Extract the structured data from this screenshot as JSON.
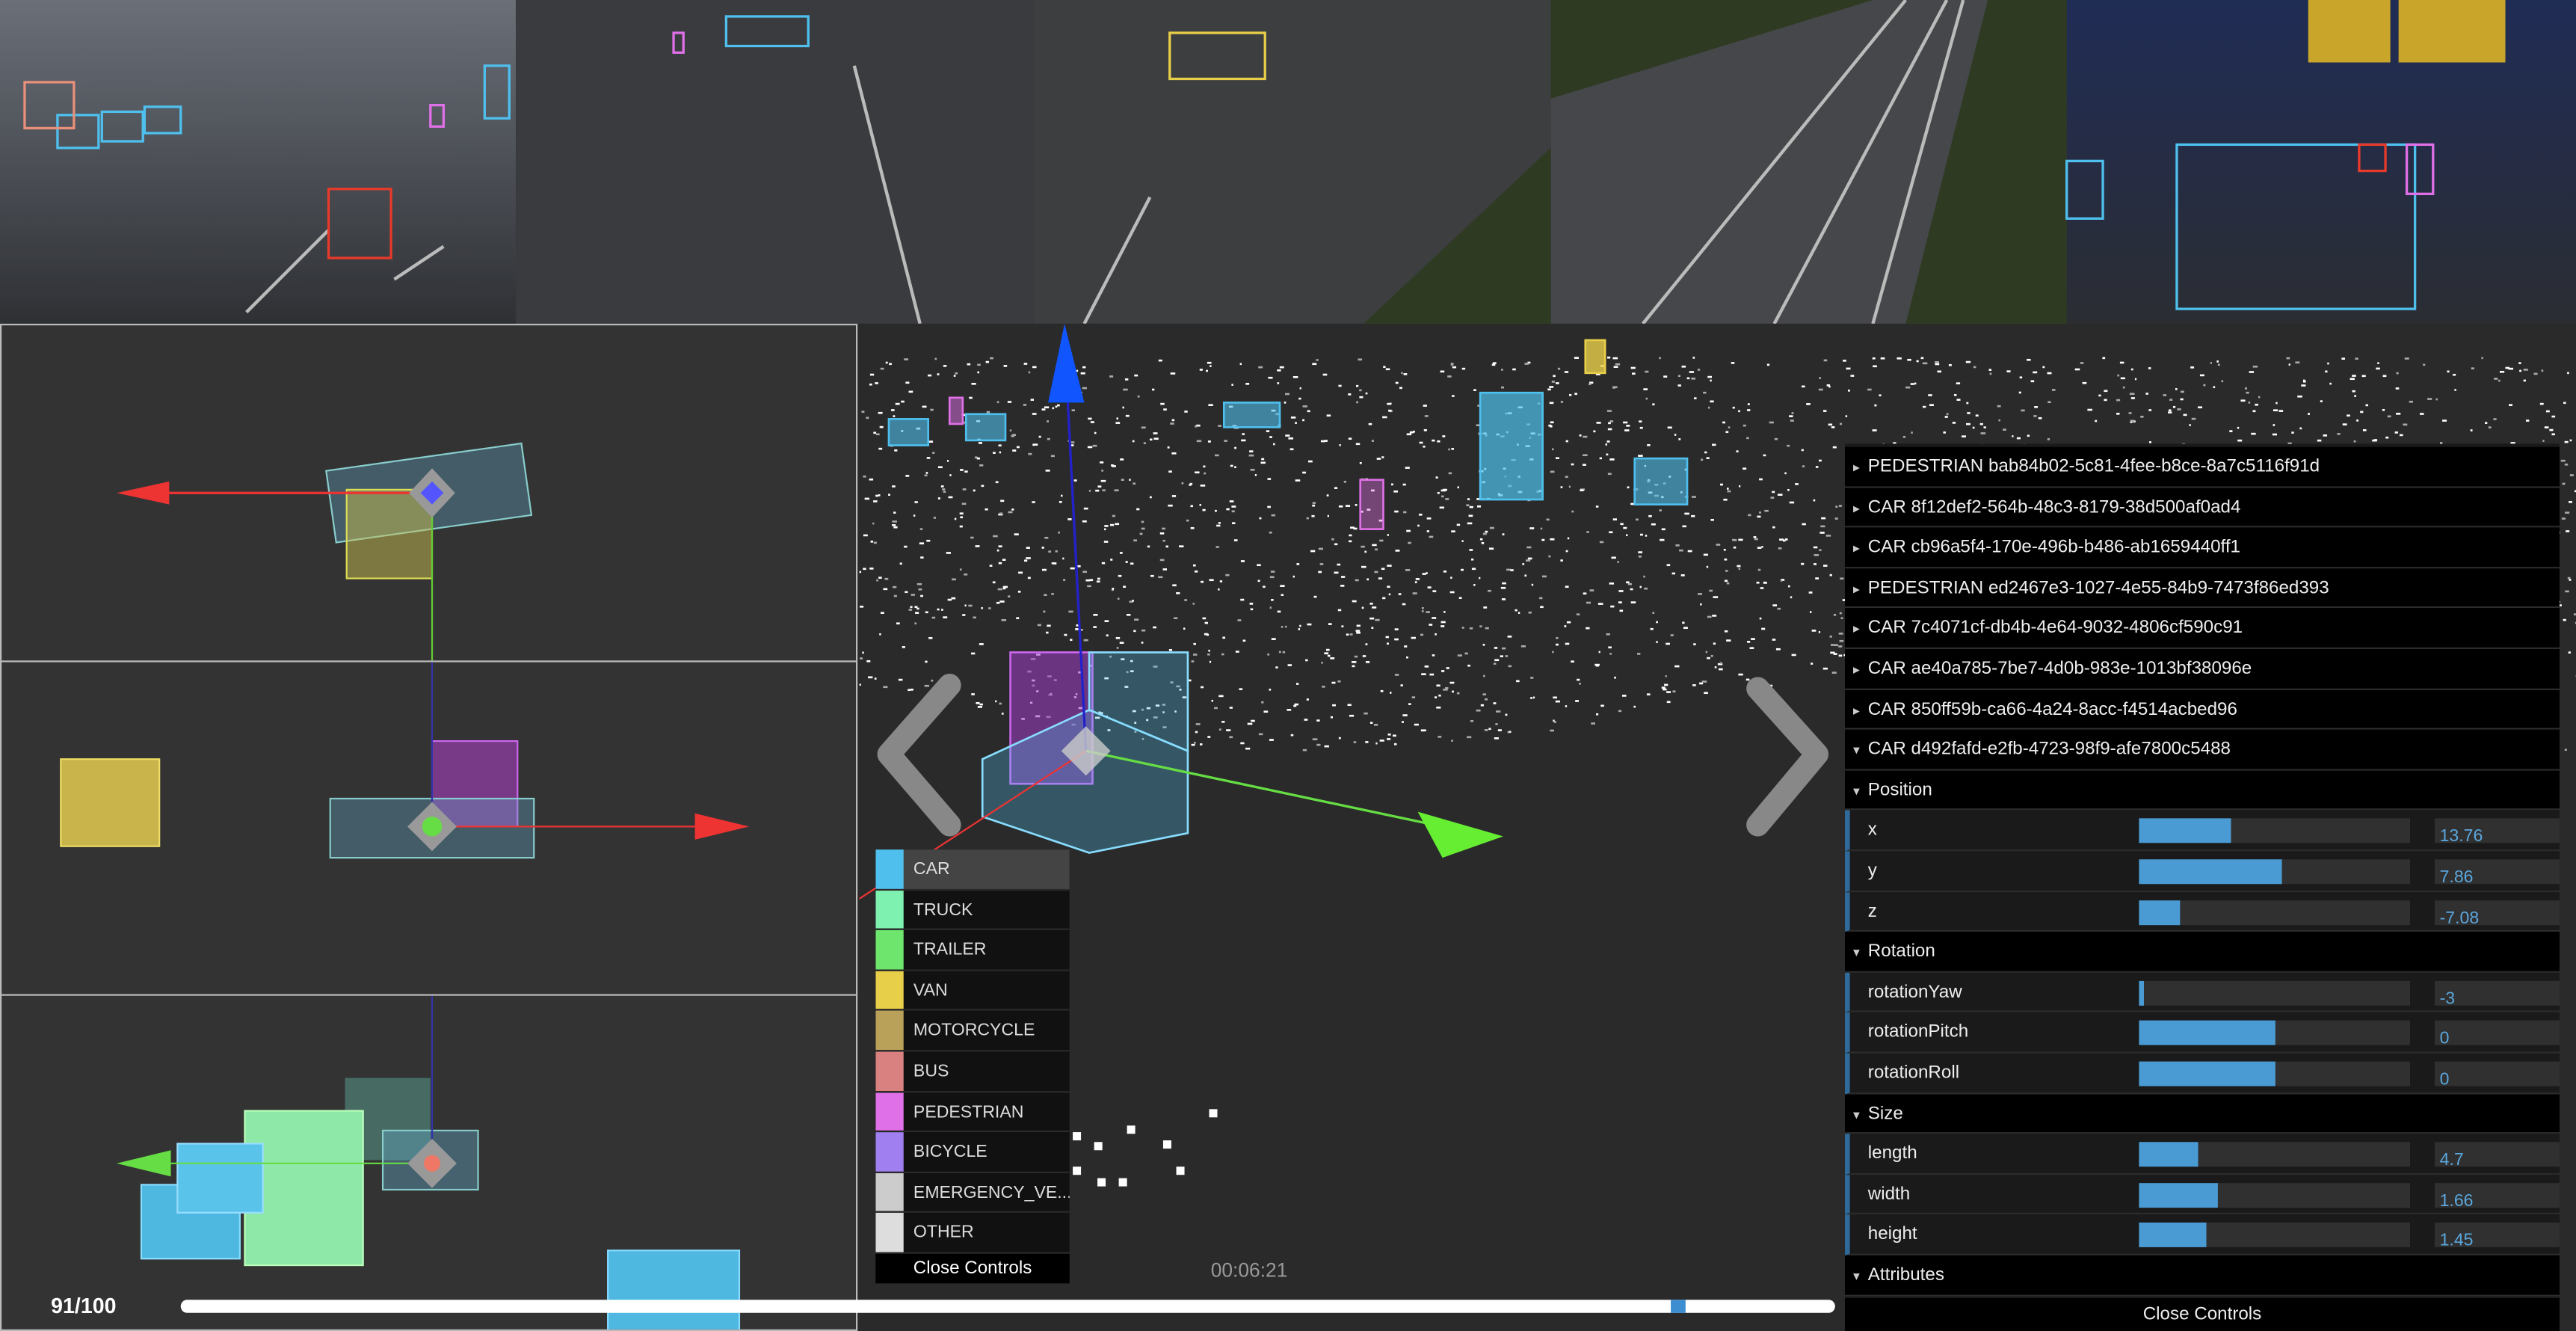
{
  "frame_counter": "91/100",
  "timestamp": "00:06:21",
  "class_menu": {
    "items": [
      {
        "label": "CAR",
        "color": "#4fc0ee"
      },
      {
        "label": "TRUCK",
        "color": "#7ef0b0"
      },
      {
        "label": "TRAILER",
        "color": "#6ee66e"
      },
      {
        "label": "VAN",
        "color": "#e8cf4a"
      },
      {
        "label": "MOTORCYCLE",
        "color": "#b9a15a"
      },
      {
        "label": "BUS",
        "color": "#d98080"
      },
      {
        "label": "PEDESTRIAN",
        "color": "#e070e8"
      },
      {
        "label": "BICYCLE",
        "color": "#a080f0"
      },
      {
        "label": "EMERGENCY_VE...",
        "color": "#cccccc"
      },
      {
        "label": "OTHER",
        "color": "#dddddd"
      }
    ],
    "close": "Close Controls"
  },
  "object_list": [
    "PEDESTRIAN bab84b02-5c81-4fee-b8ce-8a7c5116f91d",
    "CAR 8f12def2-564b-48c3-8179-38d500af0ad4",
    "CAR cb96a5f4-170e-496b-b486-ab1659440ff1",
    "PEDESTRIAN ed2467e3-1027-4e55-84b9-7473f86ed393",
    "CAR 7c4071cf-db4b-4e64-9032-4806cf590c91",
    "CAR ae40a785-7be7-4d0b-983e-1013bf38096e",
    "CAR 850ff59b-ca66-4a24-8acc-f4514acbed96",
    "CAR d492fafd-e2fb-4723-98f9-afe7800c5488"
  ],
  "folders": [
    {
      "title": "Position",
      "fields": [
        {
          "name": "x",
          "value": "13.76"
        },
        {
          "name": "y",
          "value": "7.86"
        },
        {
          "name": "z",
          "value": "-7.08"
        }
      ]
    },
    {
      "title": "Rotation",
      "fields": [
        {
          "name": "rotationYaw",
          "value": "-3"
        },
        {
          "name": "rotationPitch",
          "value": "0"
        },
        {
          "name": "rotationRoll",
          "value": "0"
        }
      ]
    },
    {
      "title": "Size",
      "fields": [
        {
          "name": "length",
          "value": "4.7"
        },
        {
          "name": "width",
          "value": "1.66"
        },
        {
          "name": "height",
          "value": "1.45"
        }
      ]
    },
    {
      "title": "Attributes"
    }
  ],
  "controls_close": "Close Controls"
}
